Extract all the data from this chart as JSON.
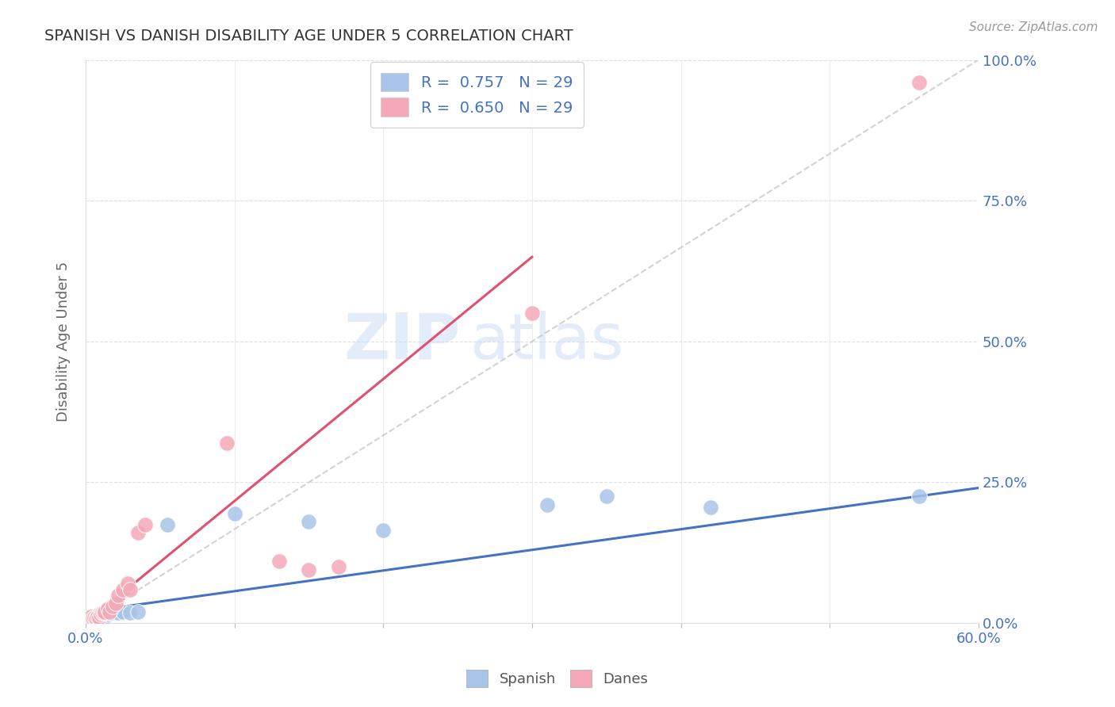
{
  "title": "SPANISH VS DANISH DISABILITY AGE UNDER 5 CORRELATION CHART",
  "source": "Source: ZipAtlas.com",
  "ylabel": "Disability Age Under 5",
  "xlim": [
    0.0,
    0.6
  ],
  "ylim": [
    0.0,
    1.0
  ],
  "ytick_labels": [
    "0.0%",
    "25.0%",
    "50.0%",
    "75.0%",
    "100.0%"
  ],
  "ytick_vals": [
    0.0,
    0.25,
    0.5,
    0.75,
    1.0
  ],
  "xtick_vals": [
    0.0,
    0.1,
    0.2,
    0.3,
    0.4,
    0.5,
    0.6
  ],
  "xtick_labels": [
    "0.0%",
    "",
    "",
    "",
    "",
    "",
    "60.0%"
  ],
  "spanish_R": 0.757,
  "spanish_N": 29,
  "danish_R": 0.65,
  "danish_N": 29,
  "spanish_color": "#a8c4e8",
  "danish_color": "#f4a8b8",
  "spanish_line_color": "#4472c4",
  "danish_line_color": "#e05070",
  "diagonal_color": "#c8c8c8",
  "watermark_zip": "ZIP",
  "watermark_atlas": "atlas",
  "spanish_x": [
    0.001,
    0.002,
    0.003,
    0.004,
    0.005,
    0.006,
    0.007,
    0.008,
    0.009,
    0.01,
    0.011,
    0.012,
    0.013,
    0.015,
    0.016,
    0.018,
    0.02,
    0.022,
    0.025,
    0.03,
    0.035,
    0.1,
    0.15,
    0.2,
    0.31,
    0.35,
    0.42,
    0.56,
    0.055
  ],
  "spanish_y": [
    0.005,
    0.005,
    0.005,
    0.008,
    0.005,
    0.005,
    0.005,
    0.008,
    0.005,
    0.01,
    0.012,
    0.015,
    0.01,
    0.015,
    0.018,
    0.018,
    0.02,
    0.018,
    0.02,
    0.018,
    0.02,
    0.195,
    0.18,
    0.165,
    0.21,
    0.225,
    0.205,
    0.225,
    0.175
  ],
  "danish_x": [
    0.001,
    0.002,
    0.003,
    0.004,
    0.005,
    0.006,
    0.007,
    0.008,
    0.009,
    0.01,
    0.011,
    0.012,
    0.013,
    0.015,
    0.016,
    0.018,
    0.02,
    0.022,
    0.025,
    0.028,
    0.03,
    0.035,
    0.04,
    0.095,
    0.13,
    0.15,
    0.17,
    0.3,
    0.56
  ],
  "danish_y": [
    0.005,
    0.01,
    0.005,
    0.012,
    0.008,
    0.01,
    0.008,
    0.012,
    0.01,
    0.015,
    0.018,
    0.018,
    0.02,
    0.025,
    0.02,
    0.03,
    0.035,
    0.05,
    0.06,
    0.07,
    0.06,
    0.16,
    0.175,
    0.32,
    0.11,
    0.095,
    0.1,
    0.55,
    0.96
  ],
  "danish_line_x": [
    0.0,
    0.3
  ],
  "danish_line_y": [
    0.0,
    0.65
  ],
  "spanish_line_x": [
    0.0,
    0.6
  ],
  "spanish_line_y": [
    0.02,
    0.24
  ]
}
